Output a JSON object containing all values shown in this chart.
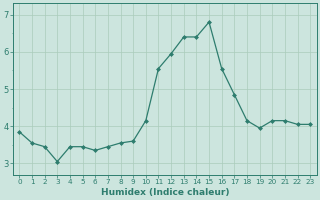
{
  "x": [
    0,
    1,
    2,
    3,
    4,
    5,
    6,
    7,
    8,
    9,
    10,
    11,
    12,
    13,
    14,
    15,
    16,
    17,
    18,
    19,
    20,
    21,
    22,
    23
  ],
  "y": [
    3.85,
    3.55,
    3.45,
    3.05,
    3.45,
    3.45,
    3.35,
    3.45,
    3.55,
    3.6,
    4.15,
    5.55,
    5.95,
    6.4,
    6.4,
    6.8,
    5.55,
    4.85,
    4.15,
    3.95,
    4.15,
    4.15,
    4.05,
    4.05
  ],
  "line_color": "#2e7d6e",
  "marker": "D",
  "marker_size": 2.0,
  "bg_color": "#cce5de",
  "grid_color_major": "#aaccbb",
  "grid_color_minor": "#ccddd8",
  "xlabel": "Humidex (Indice chaleur)",
  "ylim": [
    2.7,
    7.3
  ],
  "xlim": [
    -0.5,
    23.5
  ],
  "yticks": [
    3,
    4,
    5,
    6,
    7
  ],
  "xticks": [
    0,
    1,
    2,
    3,
    4,
    5,
    6,
    7,
    8,
    9,
    10,
    11,
    12,
    13,
    14,
    15,
    16,
    17,
    18,
    19,
    20,
    21,
    22,
    23
  ],
  "tick_fontsize": 5.2,
  "ytick_fontsize": 6.0,
  "xlabel_fontsize": 6.5
}
